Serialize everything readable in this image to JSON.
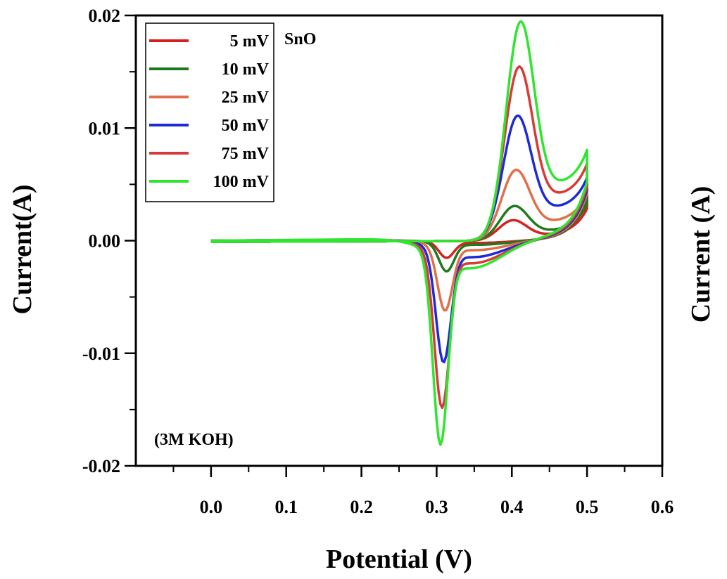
{
  "chart_data": {
    "type": "line",
    "title": "",
    "xlabel": "Potential (V)",
    "ylabel": "Current(A)",
    "ylabel_right": "Current (A)",
    "xlim": [
      -0.1,
      0.6
    ],
    "ylim": [
      -0.02,
      0.02
    ],
    "x_ticks": [
      0.0,
      0.1,
      0.2,
      0.3,
      0.4,
      0.5,
      0.6
    ],
    "x_tick_labels": [
      "0.0",
      "0.1",
      "0.2",
      "0.3",
      "0.4",
      "0.5",
      "0.6"
    ],
    "y_ticks": [
      -0.02,
      -0.01,
      0.0,
      0.01,
      0.02
    ],
    "y_tick_labels": [
      "-0.02",
      "-0.01",
      "0.00",
      "0.01",
      "0.02"
    ],
    "grid": false,
    "legend_position": "top-left",
    "legend_title": "SnO",
    "annotations": [
      "(3M KOH)"
    ],
    "series": [
      {
        "name": "5 mV",
        "color": "#d42020",
        "anodic_peak": {
          "x": 0.4,
          "y": 0.0016
        },
        "cathodic_peak": {
          "x": 0.313,
          "y": -0.0014
        },
        "vertex_current": 0.004
      },
      {
        "name": "10 mV",
        "color": "#1e7a1e",
        "anodic_peak": {
          "x": 0.402,
          "y": 0.0027
        },
        "cathodic_peak": {
          "x": 0.313,
          "y": -0.0025
        },
        "vertex_current": 0.0042
      },
      {
        "name": "25 mV",
        "color": "#e0704a",
        "anodic_peak": {
          "x": 0.404,
          "y": 0.0055
        },
        "cathodic_peak": {
          "x": 0.311,
          "y": -0.0057
        },
        "vertex_current": 0.0045
      },
      {
        "name": "50 mV",
        "color": "#1c2ad6",
        "anodic_peak": {
          "x": 0.406,
          "y": 0.0097
        },
        "cathodic_peak": {
          "x": 0.309,
          "y": -0.0099
        },
        "vertex_current": 0.0048
      },
      {
        "name": "75 mV",
        "color": "#d83a3a",
        "anodic_peak": {
          "x": 0.408,
          "y": 0.0135
        },
        "cathodic_peak": {
          "x": 0.307,
          "y": -0.0136
        },
        "vertex_current": 0.0051
      },
      {
        "name": "100 mV",
        "color": "#2ee62e",
        "anodic_peak": {
          "x": 0.41,
          "y": 0.017
        },
        "cathodic_peak": {
          "x": 0.305,
          "y": -0.0166
        },
        "vertex_current": 0.0055
      }
    ]
  }
}
